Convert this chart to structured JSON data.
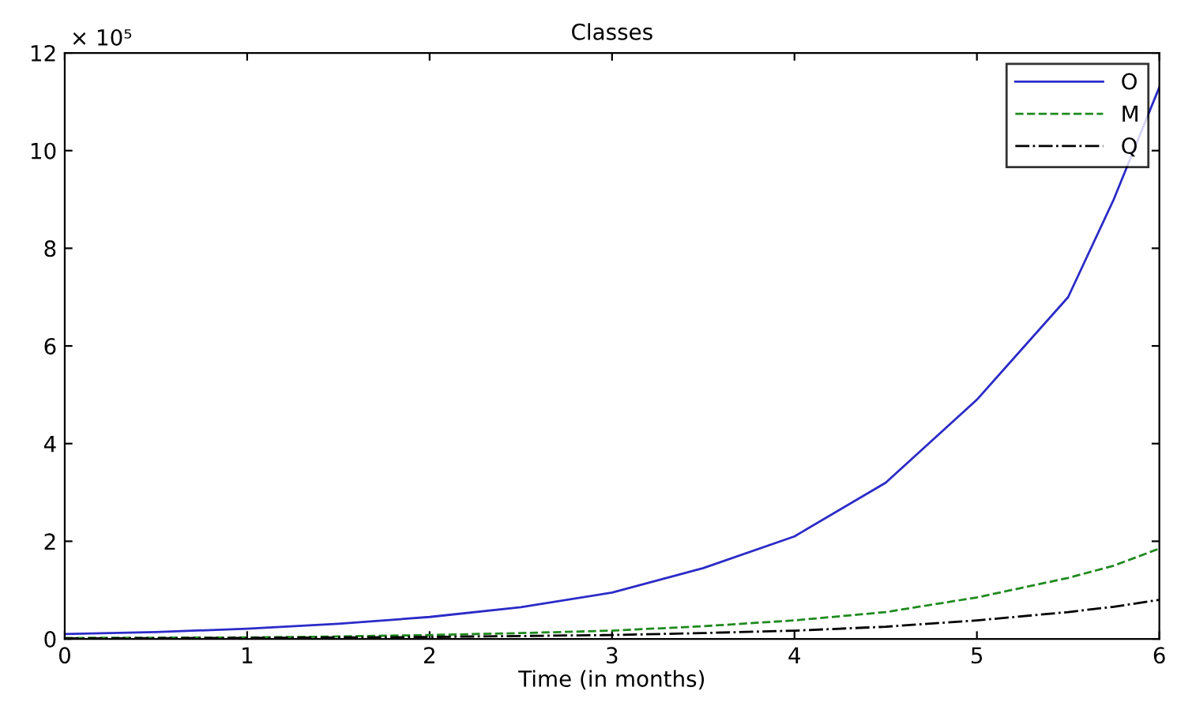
{
  "chart_data": {
    "type": "line",
    "title": "Classes",
    "xlabel": "Time (in months)",
    "annotations": [
      "× 10⁵"
    ],
    "xlim": [
      0,
      6
    ],
    "xticks": [
      0,
      1,
      2,
      3,
      4,
      5,
      6
    ],
    "ylim": [
      0,
      12
    ],
    "yticks": [
      0,
      2,
      4,
      6,
      8,
      10,
      12
    ],
    "grid": false,
    "legend": "top right",
    "marker": "none",
    "x": [
      0,
      0.5,
      1,
      1.5,
      2,
      2.5,
      3,
      3.5,
      4,
      4.5,
      5,
      5.5,
      5.75,
      6
    ],
    "series": [
      {
        "name": "O",
        "color": "#2b2bc8",
        "line_style": "solid",
        "values": [
          0.1,
          0.14,
          0.21,
          0.31,
          0.45,
          0.65,
          0.95,
          1.45,
          2.1,
          3.2,
          4.9,
          7.0,
          9.0,
          11.3
        ]
      },
      {
        "name": "M",
        "color": "#1f8a1f",
        "line_style": "dashed",
        "values": [
          0.02,
          0.025,
          0.03,
          0.05,
          0.08,
          0.12,
          0.17,
          0.26,
          0.38,
          0.55,
          0.85,
          1.25,
          1.5,
          1.85
        ]
      },
      {
        "name": "Q",
        "color": "#000000",
        "line_style": "dashdot",
        "values": [
          0.01,
          0.015,
          0.02,
          0.03,
          0.04,
          0.06,
          0.08,
          0.12,
          0.17,
          0.25,
          0.38,
          0.55,
          0.66,
          0.8
        ]
      }
    ]
  }
}
